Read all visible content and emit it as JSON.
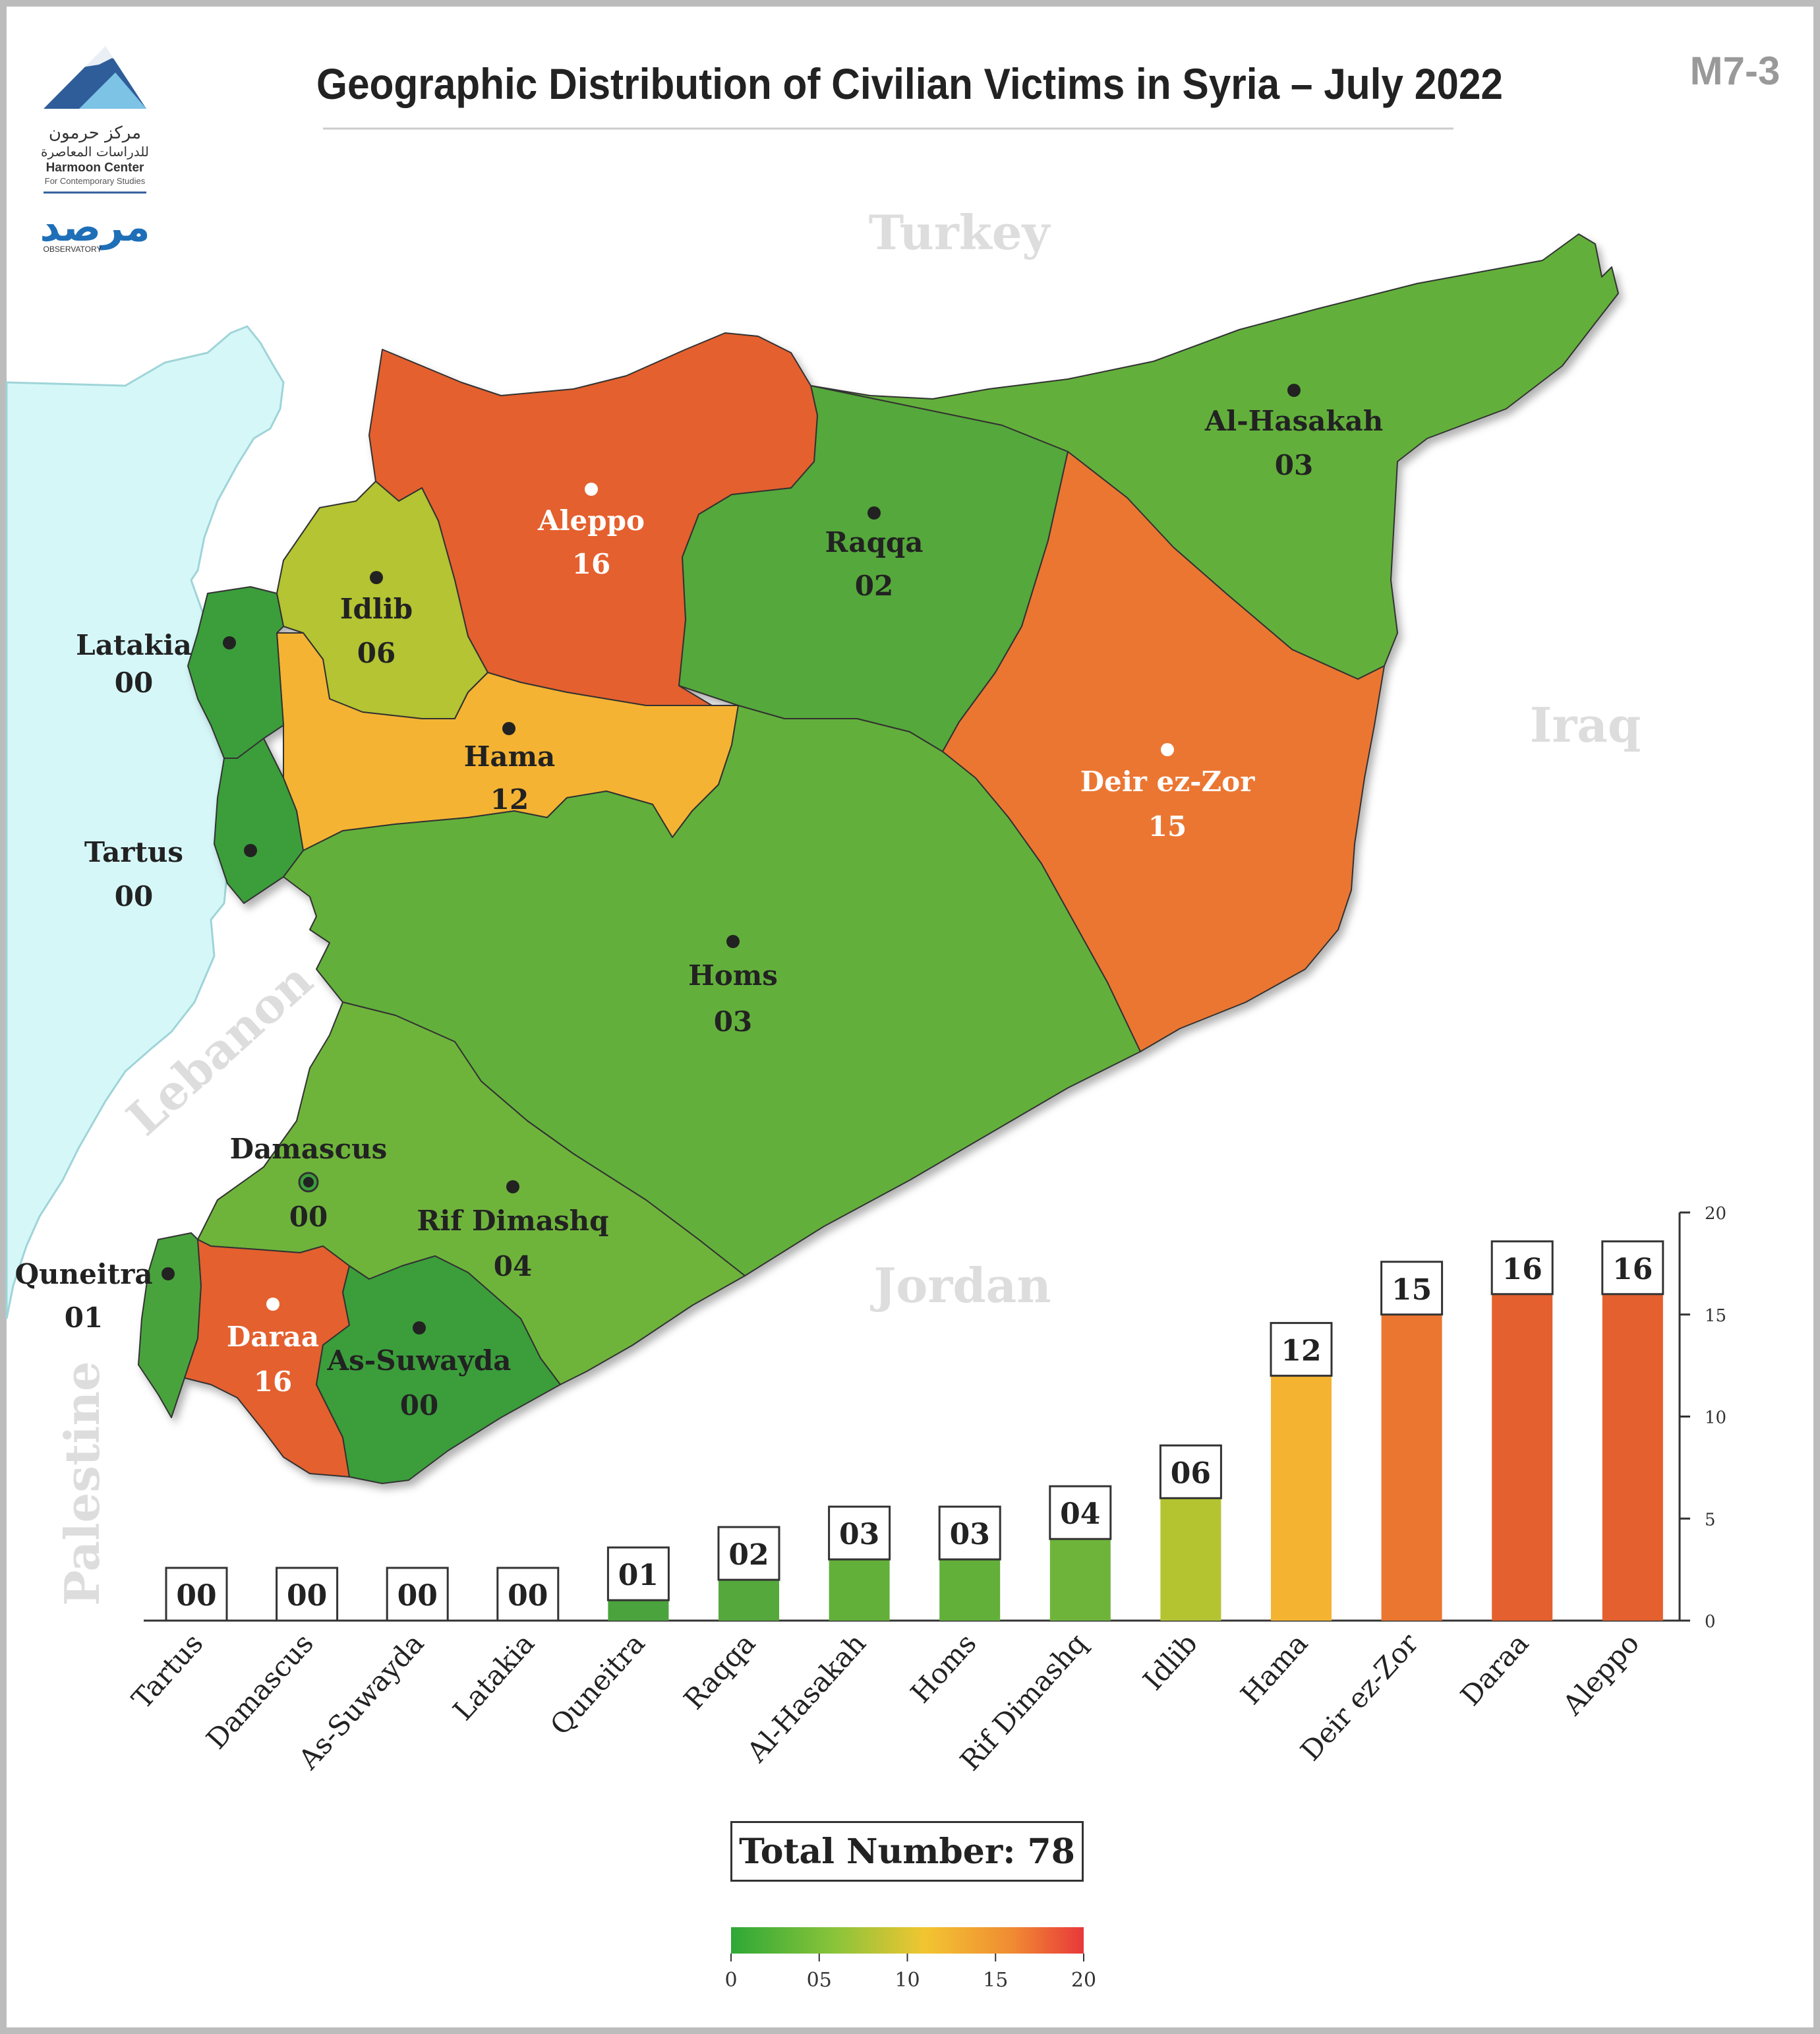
{
  "header": {
    "title": "Geographic Distribution of Civilian Victims in Syria – July 2022",
    "code": "M7-3",
    "logo_arabic_1": "مركز حرمون",
    "logo_arabic_2": "للدراسات المعاصرة",
    "logo_name": "Harmoon Center",
    "logo_sub": "For Contemporary Studies",
    "observatory_arabic": "مرصد",
    "observatory_label": "OBSERVATORY"
  },
  "map": {
    "countries": [
      "Turkey",
      "Iraq",
      "Jordan",
      "Lebanon",
      "Palestine"
    ],
    "regions": [
      {
        "name": "Aleppo",
        "value": "16",
        "color": "#e4602e"
      },
      {
        "name": "Idlib",
        "value": "06",
        "color": "#b4c431"
      },
      {
        "name": "Latakia",
        "value": "00",
        "color": "#3a9e3a"
      },
      {
        "name": "Tartus",
        "value": "00",
        "color": "#3a9e3a"
      },
      {
        "name": "Hama",
        "value": "12",
        "color": "#f4b331"
      },
      {
        "name": "Raqqa",
        "value": "02",
        "color": "#55a83b"
      },
      {
        "name": "Al-Hasakah",
        "value": "03",
        "color": "#62b03a"
      },
      {
        "name": "Deir ez-Zor",
        "value": "15",
        "color": "#eb7630"
      },
      {
        "name": "Homs",
        "value": "03",
        "color": "#62b03a"
      },
      {
        "name": "Damascus",
        "value": "00",
        "color": "#3a9e3a"
      },
      {
        "name": "Rif Dimashq",
        "value": "04",
        "color": "#6eb43a"
      },
      {
        "name": "Quneitra",
        "value": "01",
        "color": "#4aa33c"
      },
      {
        "name": "Daraa",
        "value": "16",
        "color": "#e4602e"
      },
      {
        "name": "As-Suwayda",
        "value": "00",
        "color": "#3a9e3a"
      }
    ]
  },
  "chart_data": {
    "type": "bar",
    "categories": [
      "Tartus",
      "Damascus",
      "As-Suwayda",
      "Latakia",
      "Quneitra",
      "Raqqa",
      "Al-Hasakah",
      "Homs",
      "Rif Dimashq",
      "Idlib",
      "Hama",
      "Deir ez-Zor",
      "Daraa",
      "Aleppo"
    ],
    "values": [
      0,
      0,
      0,
      0,
      1,
      2,
      3,
      3,
      4,
      6,
      12,
      15,
      16,
      16
    ],
    "value_labels": [
      "00",
      "00",
      "00",
      "00",
      "01",
      "02",
      "03",
      "03",
      "04",
      "06",
      "12",
      "15",
      "16",
      "16"
    ],
    "colors": [
      "#3a9e3a",
      "#3a9e3a",
      "#3a9e3a",
      "#3a9e3a",
      "#4aa33c",
      "#55a83b",
      "#62b03a",
      "#62b03a",
      "#6eb43a",
      "#b4c431",
      "#f4b331",
      "#eb7630",
      "#e4602e",
      "#e4602e"
    ],
    "ylim": [
      0,
      20
    ],
    "yticks": [
      "0",
      "5",
      "10",
      "15",
      "20"
    ],
    "axis_side": "right"
  },
  "total": {
    "label": "Total Number: 78"
  },
  "scale": {
    "ticks": [
      "0",
      "05",
      "10",
      "15",
      "20"
    ],
    "colors": [
      "#2ea836",
      "#8cc43a",
      "#f2c531",
      "#f08a33",
      "#e8383a"
    ]
  }
}
